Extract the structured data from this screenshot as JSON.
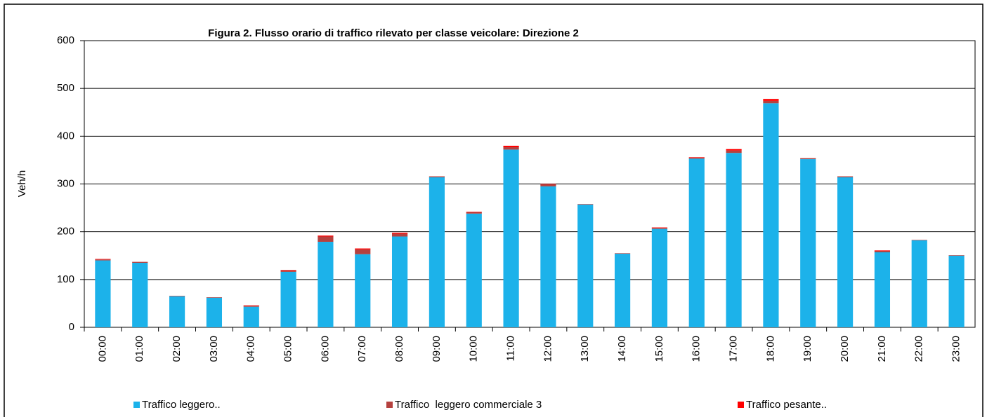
{
  "chart_data": {
    "type": "stacked_bar",
    "title": "Figura 2. Flusso orario di traffico rilevato per classe veicolare:  Direzione 2",
    "y_label": "Veh/h",
    "categories": [
      "00:00",
      "01:00",
      "02:00",
      "03:00",
      "04:00",
      "05:00",
      "06:00",
      "07:00",
      "08:00",
      "09:00",
      "10:00",
      "11:00",
      "12:00",
      "13:00",
      "14:00",
      "15:00",
      "16:00",
      "17:00",
      "18:00",
      "19:00",
      "20:00",
      "21:00",
      "22:00",
      "23:00"
    ],
    "series": [
      {
        "name": "Traffico leggero..",
        "color": "#1cb2ea",
        "values": [
          140,
          135,
          65,
          62,
          43,
          116,
          179,
          153,
          190,
          314,
          238,
          372,
          295,
          257,
          154,
          206,
          353,
          365,
          469,
          352,
          314,
          157,
          182,
          150
        ]
      },
      {
        "name": "Traffico  leggero commerciale 3",
        "color": "#b5413f",
        "values": [
          2,
          2,
          1,
          1,
          2,
          3,
          11,
          10,
          6,
          2,
          3,
          5,
          4,
          1,
          1,
          2,
          2,
          5,
          5,
          2,
          2,
          3,
          1,
          1
        ]
      },
      {
        "name": "Traffico pesante..",
        "color": "#ff0000",
        "values": [
          1,
          0,
          0,
          0,
          1,
          1,
          2,
          2,
          2,
          0,
          1,
          3,
          1,
          0,
          0,
          1,
          1,
          3,
          4,
          0,
          0,
          1,
          0,
          0
        ]
      }
    ],
    "ylim": [
      0,
      600
    ],
    "yticks": [
      0,
      100,
      200,
      300,
      400,
      500,
      600
    ],
    "grid": true,
    "legend": "bottom"
  }
}
